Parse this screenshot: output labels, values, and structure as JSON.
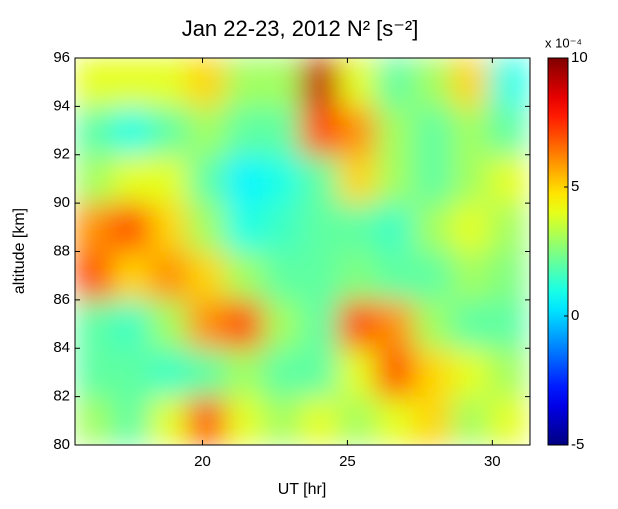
{
  "chart_data": {
    "type": "heatmap",
    "title": "Jan 22-23, 2012 N² [s⁻²]",
    "x_label": "UT [hr]",
    "y_label": "altitude [km]",
    "x": [
      16.25,
      17.55,
      18.85,
      20.15,
      21.45,
      22.75,
      24.05,
      25.35,
      26.65,
      27.95,
      29.25,
      30.55
    ],
    "y": [
      81,
      83,
      85,
      87,
      89,
      91,
      93,
      95
    ],
    "z": [
      [
        3,
        2,
        4,
        7,
        4,
        3,
        4,
        3,
        4,
        5,
        3,
        4
      ],
      [
        2,
        2,
        1.5,
        2,
        3,
        2,
        2,
        4,
        7,
        5,
        4,
        3
      ],
      [
        2,
        1.5,
        3,
        6,
        7,
        3,
        2,
        7,
        6,
        3,
        2,
        2
      ],
      [
        7,
        5,
        6,
        5,
        3,
        2,
        2,
        2.5,
        2,
        2,
        3,
        2.5
      ],
      [
        6,
        7,
        5,
        3,
        1,
        1.5,
        2,
        2,
        1.5,
        3,
        4,
        3
      ],
      [
        3,
        4,
        4,
        2,
        0.5,
        1,
        2,
        5,
        3,
        2,
        3,
        4
      ],
      [
        2,
        1,
        2,
        3,
        2,
        2,
        7,
        6,
        3,
        2,
        3,
        2
      ],
      [
        4,
        4,
        4,
        5,
        3,
        3,
        9,
        4,
        2,
        3,
        5,
        1
      ]
    ],
    "xlim": [
      15.6,
      31.3
    ],
    "ylim": [
      80,
      96
    ],
    "xticks": [
      20,
      25,
      30
    ],
    "yticks": [
      80,
      82,
      84,
      86,
      88,
      90,
      92,
      94,
      96
    ],
    "colormap": "jet",
    "clim": [
      -5,
      10
    ],
    "colorbar_ticks": [
      -5,
      0,
      5,
      10
    ],
    "colorbar_exponent_label": "x 10⁻⁴"
  }
}
